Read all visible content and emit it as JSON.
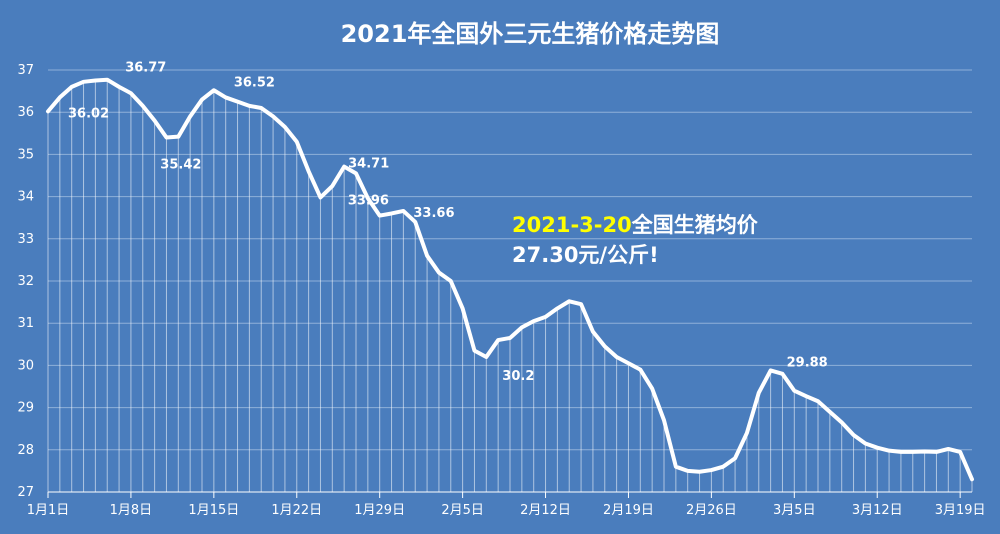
{
  "chart_data": {
    "type": "area",
    "title": "2021年全国外三元生猪价格走势图",
    "xlabel": "",
    "ylabel": "",
    "ylim": [
      27,
      37
    ],
    "yticks": [
      "27",
      "28",
      "29",
      "30",
      "31",
      "32",
      "33",
      "34",
      "35",
      "36",
      "37"
    ],
    "xtick_labels": [
      "1月1日",
      "1月8日",
      "1月15日",
      "1月22日",
      "1月29日",
      "2月5日",
      "2月12日",
      "2月19日",
      "2月26日",
      "3月5日",
      "3月12日",
      "3月19日"
    ],
    "x": [
      "01-01",
      "01-02",
      "01-03",
      "01-04",
      "01-05",
      "01-06",
      "01-07",
      "01-08",
      "01-09",
      "01-10",
      "01-11",
      "01-12",
      "01-13",
      "01-14",
      "01-15",
      "01-16",
      "01-17",
      "01-18",
      "01-19",
      "01-20",
      "01-21",
      "01-22",
      "01-23",
      "01-24",
      "01-25",
      "01-26",
      "01-27",
      "01-28",
      "01-29",
      "01-30",
      "01-31",
      "02-01",
      "02-02",
      "02-03",
      "02-04",
      "02-05",
      "02-06",
      "02-07",
      "02-08",
      "02-09",
      "02-10",
      "02-11",
      "02-12",
      "02-13",
      "02-14",
      "02-15",
      "02-16",
      "02-17",
      "02-18",
      "02-19",
      "02-20",
      "02-21",
      "02-22",
      "02-23",
      "02-24",
      "02-25",
      "02-26",
      "02-27",
      "02-28",
      "03-01",
      "03-02",
      "03-03",
      "03-04",
      "03-05",
      "03-06",
      "03-07",
      "03-08",
      "03-09",
      "03-10",
      "03-11",
      "03-12",
      "03-13",
      "03-14",
      "03-15",
      "03-16",
      "03-17",
      "03-18",
      "03-19",
      "03-20"
    ],
    "values": [
      36.02,
      36.35,
      36.6,
      36.72,
      36.75,
      36.77,
      36.6,
      36.45,
      36.15,
      35.8,
      35.4,
      35.42,
      35.9,
      36.3,
      36.52,
      36.35,
      36.25,
      36.15,
      36.1,
      35.9,
      35.65,
      35.3,
      34.6,
      33.98,
      34.25,
      34.71,
      34.55,
      33.96,
      33.55,
      33.6,
      33.66,
      33.4,
      32.6,
      32.2,
      32.0,
      31.35,
      30.35,
      30.2,
      30.6,
      30.65,
      30.9,
      31.05,
      31.15,
      31.35,
      31.52,
      31.45,
      30.8,
      30.45,
      30.2,
      30.05,
      29.9,
      29.45,
      28.7,
      27.6,
      27.5,
      27.48,
      27.52,
      27.6,
      27.8,
      28.4,
      29.35,
      29.88,
      29.8,
      29.4,
      29.27,
      29.15,
      28.9,
      28.65,
      28.35,
      28.15,
      28.05,
      27.98,
      27.95,
      27.95,
      27.96,
      27.95,
      28.02,
      27.95,
      27.3
    ],
    "data_labels": [
      {
        "text": "36.02",
        "x": "01-01",
        "y": 36.02
      },
      {
        "text": "36.77",
        "x": "01-06",
        "y": 36.77
      },
      {
        "text": "35.42",
        "x": "01-12",
        "y": 35.42
      },
      {
        "text": "36.52",
        "x": "01-15",
        "y": 36.52
      },
      {
        "text": "33.96",
        "x": "01-28",
        "y": 33.96
      },
      {
        "text": "34.71",
        "x": "01-26",
        "y": 34.71
      },
      {
        "text": "33.66",
        "x": "01-31",
        "y": 33.66
      },
      {
        "text": "30.2",
        "x": "02-07",
        "y": 30.2
      },
      {
        "text": "29.88",
        "x": "03-03",
        "y": 29.88
      }
    ],
    "annotation": {
      "date": "2021-3-20",
      "text1": "全国生猪均价",
      "text2": "27.30元/公斤!"
    },
    "grid": true,
    "legend": "none",
    "colors": {
      "background": "#4a7dbd",
      "line": "#ffffff",
      "grid": "#8fb0d9",
      "highlight": "#ffff00"
    }
  }
}
